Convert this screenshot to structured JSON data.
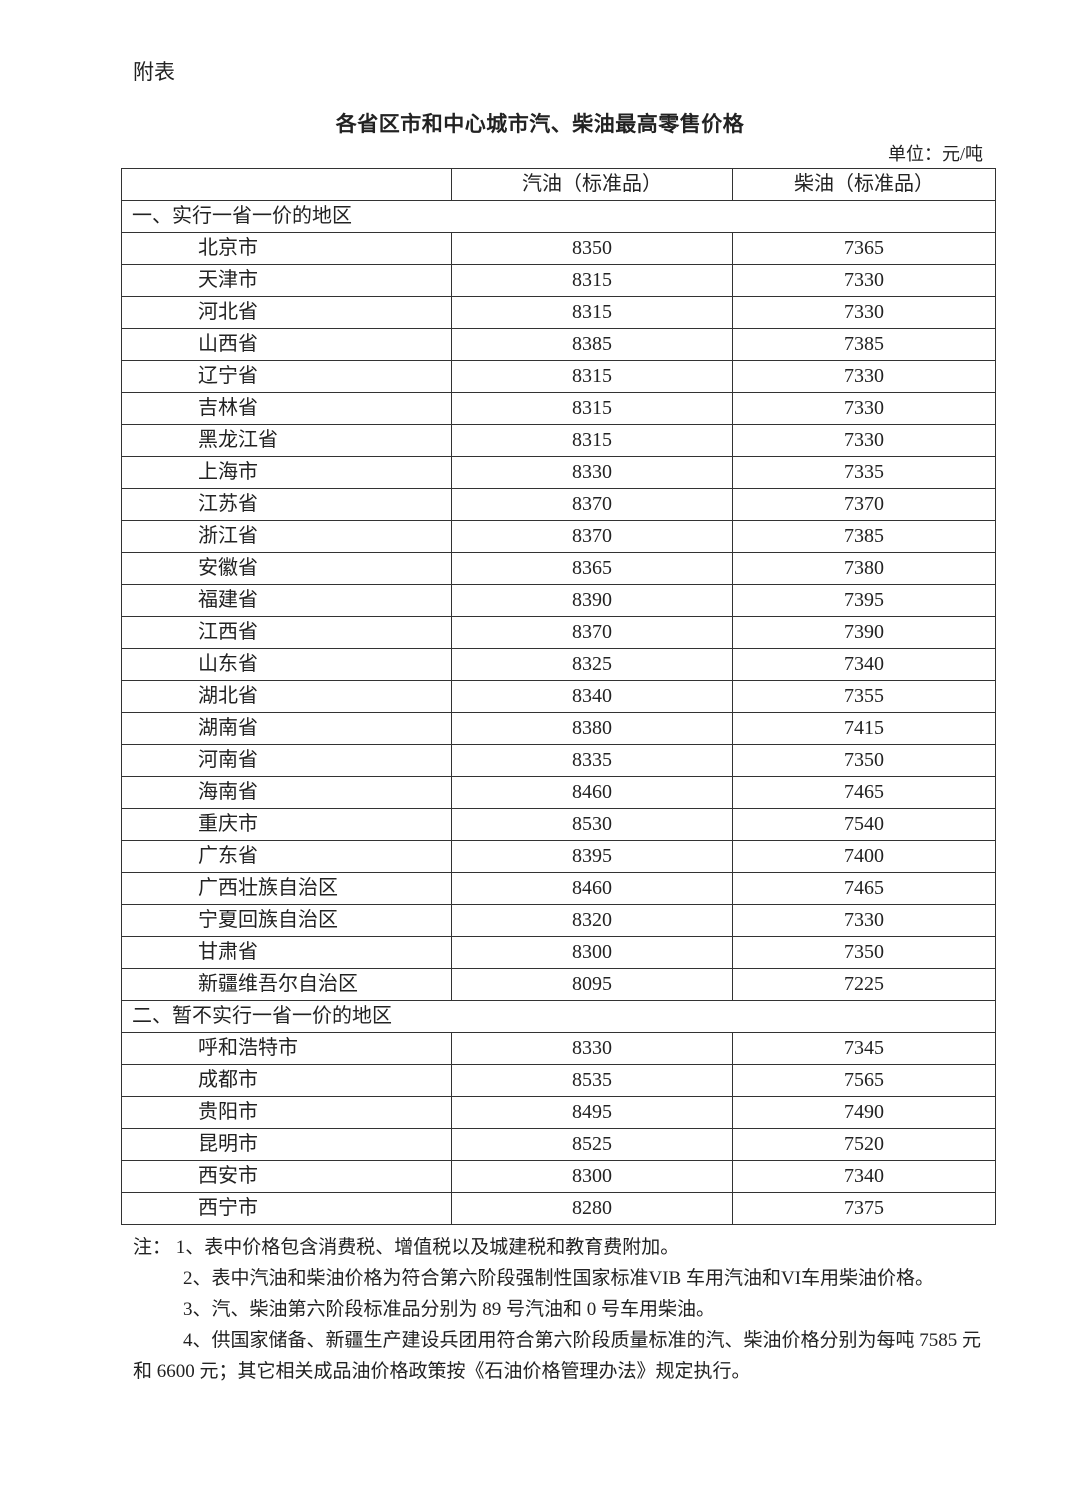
{
  "attachment_label": "附表",
  "title": "各省区市和中心城市汽、柴油最高零售价格",
  "unit": "单位：元/吨",
  "table": {
    "headers": [
      "",
      "汽油（标准品）",
      "柴油（标准品）"
    ],
    "sections": [
      {
        "label": "一、实行一省一价的地区",
        "rows": [
          [
            "北京市",
            "8350",
            "7365"
          ],
          [
            "天津市",
            "8315",
            "7330"
          ],
          [
            "河北省",
            "8315",
            "7330"
          ],
          [
            "山西省",
            "8385",
            "7385"
          ],
          [
            "辽宁省",
            "8315",
            "7330"
          ],
          [
            "吉林省",
            "8315",
            "7330"
          ],
          [
            "黑龙江省",
            "8315",
            "7330"
          ],
          [
            "上海市",
            "8330",
            "7335"
          ],
          [
            "江苏省",
            "8370",
            "7370"
          ],
          [
            "浙江省",
            "8370",
            "7385"
          ],
          [
            "安徽省",
            "8365",
            "7380"
          ],
          [
            "福建省",
            "8390",
            "7395"
          ],
          [
            "江西省",
            "8370",
            "7390"
          ],
          [
            "山东省",
            "8325",
            "7340"
          ],
          [
            "湖北省",
            "8340",
            "7355"
          ],
          [
            "湖南省",
            "8380",
            "7415"
          ],
          [
            "河南省",
            "8335",
            "7350"
          ],
          [
            "海南省",
            "8460",
            "7465"
          ],
          [
            "重庆市",
            "8530",
            "7540"
          ],
          [
            "广东省",
            "8395",
            "7400"
          ],
          [
            "广西壮族自治区",
            "8460",
            "7465"
          ],
          [
            "宁夏回族自治区",
            "8320",
            "7330"
          ],
          [
            "甘肃省",
            "8300",
            "7350"
          ],
          [
            "新疆维吾尔自治区",
            "8095",
            "7225"
          ]
        ]
      },
      {
        "label": "二、暂不实行一省一价的地区",
        "rows": [
          [
            "呼和浩特市",
            "8330",
            "7345"
          ],
          [
            "成都市",
            "8535",
            "7565"
          ],
          [
            "贵阳市",
            "8495",
            "7490"
          ],
          [
            "昆明市",
            "8525",
            "7520"
          ],
          [
            "西安市",
            "8300",
            "7340"
          ],
          [
            "西宁市",
            "8280",
            "7375"
          ]
        ]
      }
    ]
  },
  "notes": [
    "注：  1、表中价格包含消费税、增值税以及城建税和教育费附加。",
    "2、表中汽油和柴油价格为符合第六阶段强制性国家标准VIB 车用汽油和VI车用柴油价格。",
    "3、汽、柴油第六阶段标准品分别为 89 号汽油和 0 号车用柴油。",
    "4、供国家储备、新疆生产建设兵团用符合第六阶段质量标准的汽、柴油价格分别为每吨 7585 元和 6600 元；其它相关成品油价格政策按《石油价格管理办法》规定执行。"
  ]
}
